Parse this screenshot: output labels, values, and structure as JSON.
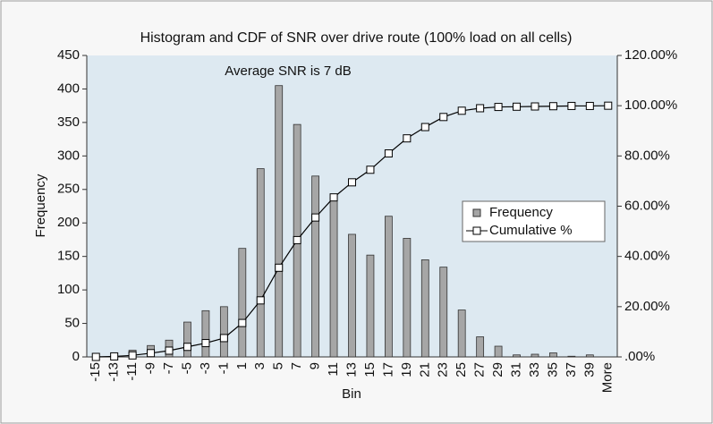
{
  "chart_data": {
    "type": "bar",
    "title": "Histogram and CDF of SNR over drive route (100% load on all cells)",
    "annotation": "Average SNR is 7 dB",
    "x_label": "Bin",
    "y_label": "Frequency",
    "categories": [
      "-15",
      "-13",
      "-11",
      "-9",
      "-7",
      "-5",
      "-3",
      "-1",
      "1",
      "3",
      "5",
      "7",
      "9",
      "11",
      "13",
      "15",
      "17",
      "19",
      "21",
      "23",
      "25",
      "27",
      "29",
      "31",
      "33",
      "35",
      "37",
      "39",
      "More"
    ],
    "series": [
      {
        "name": "Frequency",
        "color": "#a6a6a6",
        "values": [
          0,
          2,
          10,
          17,
          25,
          52,
          69,
          75,
          162,
          281,
          405,
          347,
          270,
          238,
          183,
          152,
          210,
          177,
          145,
          134,
          70,
          30,
          16,
          3,
          4,
          6,
          1,
          3,
          0
        ]
      },
      {
        "name": "Cumulative %",
        "color": "#000000",
        "axis": "y2",
        "values": [
          0,
          0.2,
          0.6,
          1.5,
          2.5,
          4,
          5.5,
          7.5,
          13.5,
          22.5,
          35.5,
          46.5,
          55.5,
          63.5,
          69.5,
          74.5,
          81,
          87,
          91.5,
          95.5,
          98,
          99,
          99.5,
          99.6,
          99.7,
          99.8,
          99.9,
          99.9,
          100
        ]
      }
    ],
    "ylim": [
      0,
      450
    ],
    "yticks": [
      0,
      50,
      100,
      150,
      200,
      250,
      300,
      350,
      400,
      450
    ],
    "y2lim": [
      0,
      120
    ],
    "y2ticks": [
      {
        "value": 0,
        "label": ".00%"
      },
      {
        "value": 20,
        "label": "20.00%"
      },
      {
        "value": 40,
        "label": "40.00%"
      },
      {
        "value": 60,
        "label": "60.00%"
      },
      {
        "value": 80,
        "label": "80.00%"
      },
      {
        "value": 100,
        "label": "100.00%"
      },
      {
        "value": 120,
        "label": "120.00%"
      }
    ],
    "legend": "right"
  }
}
